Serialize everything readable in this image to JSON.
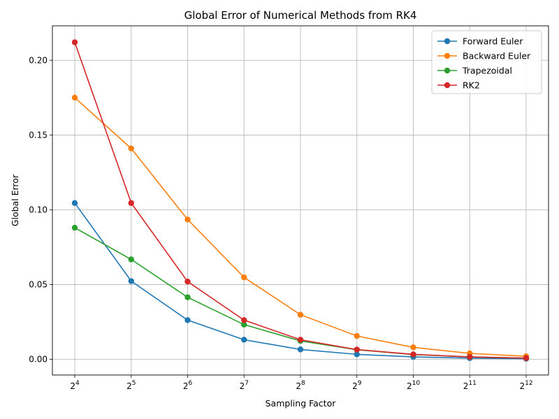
{
  "chart_data": {
    "type": "line",
    "title": "Global Error of Numerical Methods from RK4",
    "xlabel": "Sampling Factor",
    "ylabel": "Global Error",
    "x_scale": "log2",
    "x": [
      16,
      32,
      64,
      128,
      256,
      512,
      1024,
      2048,
      4096
    ],
    "x_tick_base": "2",
    "x_tick_exponents": [
      "4",
      "5",
      "6",
      "7",
      "8",
      "9",
      "10",
      "11",
      "12"
    ],
    "ylim": [
      -0.0105,
      0.223
    ],
    "y_ticks": [
      "0.00",
      "0.05",
      "0.10",
      "0.15",
      "0.20"
    ],
    "y_tick_values": [
      0.0,
      0.05,
      0.1,
      0.15,
      0.2
    ],
    "grid": true,
    "legend_position": "top-right",
    "series": [
      {
        "name": "Forward Euler",
        "color": "#1f77b4",
        "values": [
          0.1045,
          0.0523,
          0.0262,
          0.0131,
          0.0066,
          0.0033,
          0.0016,
          0.0008,
          0.0004
        ]
      },
      {
        "name": "Backward Euler",
        "color": "#ff7f0e",
        "values": [
          0.175,
          0.141,
          0.0935,
          0.0548,
          0.0298,
          0.0156,
          0.008,
          0.004,
          0.002
        ]
      },
      {
        "name": "Trapezoidal",
        "color": "#2ca02c",
        "values": [
          0.088,
          0.0668,
          0.0415,
          0.0232,
          0.0123,
          0.0064,
          0.0032,
          0.0016,
          0.0008
        ]
      },
      {
        "name": "RK2",
        "color": "#d62728",
        "values": [
          0.212,
          0.1045,
          0.052,
          0.0262,
          0.0131,
          0.0065,
          0.0033,
          0.0016,
          0.0008
        ]
      }
    ]
  }
}
